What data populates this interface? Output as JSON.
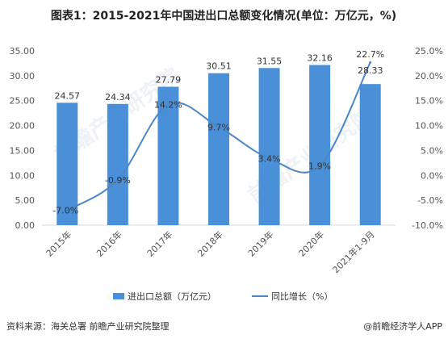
{
  "title": "图表1：2015-2021年中国进出口总额变化情况(单位：万亿元，%)",
  "source": "资料来源：海关总署 前瞻产业研究院整理",
  "brand": "@前瞻经济学人APP",
  "watermark": "前瞻产业研究院",
  "colors": {
    "bar": "#4a90d9",
    "line": "#4a86c8",
    "axis": "#d9d9d9"
  },
  "chart_data": {
    "type": "bar",
    "categories": [
      "2015年",
      "2016年",
      "2017年",
      "2018年",
      "2019年",
      "2020年",
      "2021年1-9月"
    ],
    "series": [
      {
        "name": "进出口总额（万亿元）",
        "type": "bar",
        "axis": "left",
        "values": [
          24.57,
          24.34,
          27.79,
          30.51,
          31.55,
          32.16,
          28.33
        ],
        "labels": [
          "24.57",
          "24.34",
          "27.79",
          "30.51",
          "31.55",
          "32.16",
          "28.33"
        ]
      },
      {
        "name": "同比增长（%）",
        "type": "line",
        "axis": "right",
        "values": [
          -7.0,
          -0.9,
          14.2,
          9.7,
          3.4,
          1.9,
          22.7
        ],
        "labels": [
          "-7.0%",
          "-0.9%",
          "14.2%",
          "9.7%",
          "3.4%",
          "1.9%",
          "22.7%"
        ]
      }
    ],
    "left_axis": {
      "min": 0,
      "max": 35,
      "step": 5,
      "tick_labels": [
        "0.00",
        "5.00",
        "10.00",
        "15.00",
        "20.00",
        "25.00",
        "30.00",
        "35.00"
      ]
    },
    "right_axis": {
      "min": -10,
      "max": 25,
      "step": 5,
      "tick_labels": [
        "-10.0%",
        "-5.0%",
        "0.0%",
        "5.0%",
        "10.0%",
        "15.0%",
        "20.0%",
        "25.0%"
      ]
    },
    "grid": false,
    "legend_position": "bottom"
  }
}
